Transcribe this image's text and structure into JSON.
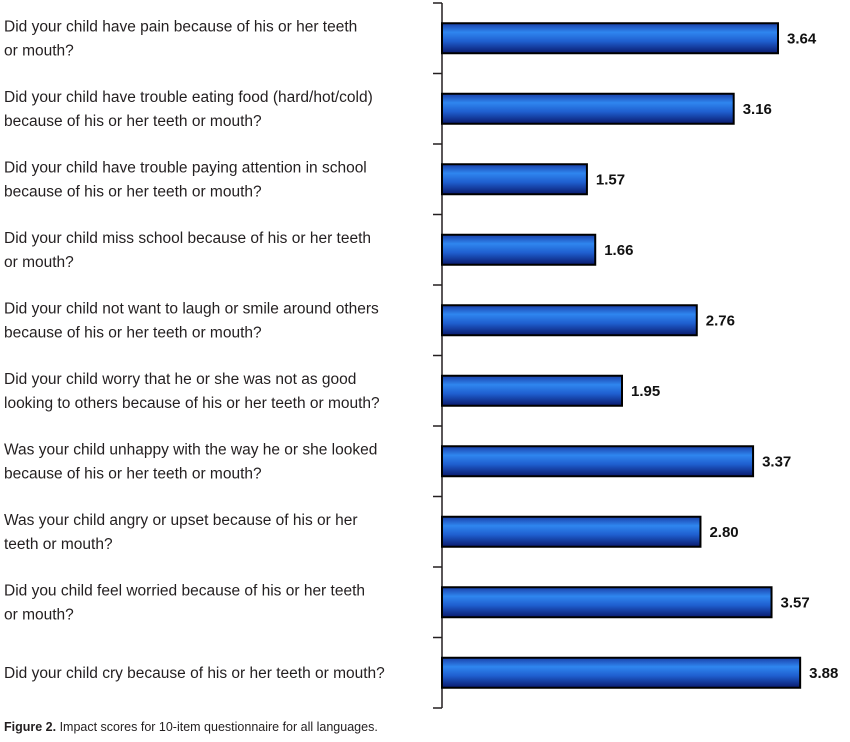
{
  "chart_data": {
    "type": "bar",
    "orientation": "horizontal",
    "categories": [
      [
        "Did your child have pain because of his or her teeth",
        "or mouth?"
      ],
      [
        "Did your child have trouble eating food (hard/hot/cold)",
        "because of his or her teeth or mouth?"
      ],
      [
        "Did your child have trouble paying attention in school",
        "because of his or her teeth or mouth?"
      ],
      [
        "Did your child miss school because of his or her teeth",
        "or mouth?"
      ],
      [
        "Did your child not want to laugh or smile around others",
        "because of his or her teeth or mouth?"
      ],
      [
        "Did your child worry that he or she was not as good",
        "looking to others because of his or her teeth or mouth?"
      ],
      [
        "Was your child unhappy with the way he or she looked",
        "because of his or her teeth or mouth?"
      ],
      [
        "Was your child angry or upset because of his or her",
        "teeth or mouth?"
      ],
      [
        "Did you child feel worried because of his or her teeth",
        "or mouth?"
      ],
      [
        "Did your child cry because of his or her teeth or mouth?"
      ]
    ],
    "values": [
      3.64,
      3.16,
      1.57,
      1.66,
      2.76,
      1.95,
      3.37,
      2.8,
      3.57,
      3.88
    ],
    "value_labels": [
      "3.64",
      "3.16",
      "1.57",
      "1.66",
      "2.76",
      "1.95",
      "3.37",
      "2.80",
      "3.57",
      "3.88"
    ],
    "xlim": [
      0,
      4.0
    ],
    "grid": false,
    "legend": "none",
    "bar_fill": "blue vertical gradient",
    "colors": {
      "bar_light": "#2f86ef",
      "bar_mid": "#1f5fcf",
      "bar_dark": "#0a1a6e",
      "outline": "#000000"
    }
  },
  "caption": {
    "label": "Figure 2.",
    "text": " Impact scores for 10-item questionnaire for all languages."
  }
}
